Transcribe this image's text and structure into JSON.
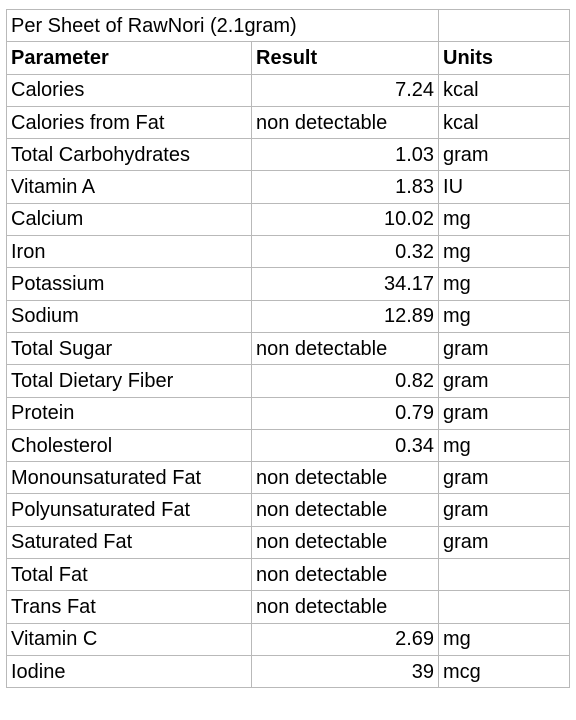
{
  "table": {
    "title": "Per Sheet of RawNori (2.1gram)",
    "headers": {
      "parameter": "Parameter",
      "result": "Result",
      "units": "Units"
    },
    "rows": [
      {
        "parameter": "Calories",
        "result": "7.24",
        "units": "kcal"
      },
      {
        "parameter": "Calories from Fat",
        "result": "non detectable",
        "units": "kcal"
      },
      {
        "parameter": "Total Carbohydrates",
        "result": "1.03",
        "units": "gram"
      },
      {
        "parameter": "Vitamin A",
        "result": "1.83",
        "units": "IU"
      },
      {
        "parameter": "Calcium",
        "result": "10.02",
        "units": "mg"
      },
      {
        "parameter": "Iron",
        "result": "0.32",
        "units": "mg"
      },
      {
        "parameter": "Potassium",
        "result": "34.17",
        "units": "mg"
      },
      {
        "parameter": "Sodium",
        "result": "12.89",
        "units": "mg"
      },
      {
        "parameter": "Total Sugar",
        "result": "non detectable",
        "units": "gram"
      },
      {
        "parameter": "Total Dietary Fiber",
        "result": "0.82",
        "units": "gram"
      },
      {
        "parameter": "Protein",
        "result": "0.79",
        "units": "gram"
      },
      {
        "parameter": "Cholesterol",
        "result": "0.34",
        "units": "mg"
      },
      {
        "parameter": "Monounsaturated Fat",
        "result": "non detectable",
        "units": "gram"
      },
      {
        "parameter": "Polyunsaturated Fat",
        "result": "non detectable",
        "units": "gram"
      },
      {
        "parameter": "Saturated Fat",
        "result": "non detectable",
        "units": "gram"
      },
      {
        "parameter": "Total Fat",
        "result": "non detectable",
        "units": ""
      },
      {
        "parameter": "Trans Fat",
        "result": "non detectable",
        "units": ""
      },
      {
        "parameter": "Vitamin C",
        "result": "2.69",
        "units": "mg"
      },
      {
        "parameter": "Iodine",
        "result": "39",
        "units": "mcg"
      }
    ]
  }
}
